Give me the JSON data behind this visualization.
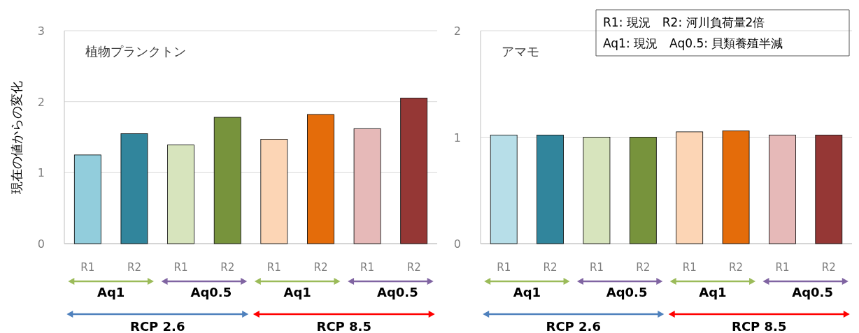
{
  "chart_data": [
    {
      "type": "bar",
      "title": "植物プランクトン",
      "ylabel": "現在の値からの変化",
      "categories": [
        "R1",
        "R2",
        "R1",
        "R2",
        "R1",
        "R2",
        "R1",
        "R2"
      ],
      "values": [
        1.25,
        1.55,
        1.39,
        1.78,
        1.47,
        1.82,
        1.62,
        2.05
      ],
      "colors": [
        "#92cddc",
        "#31859c",
        "#d7e4bd",
        "#77933c",
        "#fcd5b5",
        "#e46c0a",
        "#e6b9b8",
        "#953735"
      ],
      "ylim": [
        0,
        3
      ],
      "yticks": [
        0,
        1,
        2,
        3
      ],
      "grid": "y",
      "annotations": [
        "Aq1",
        "Aq0.5",
        "Aq1",
        "Aq0.5",
        "RCP 2.6",
        "RCP 8.5"
      ]
    },
    {
      "type": "bar",
      "title": "アマモ",
      "categories": [
        "R1",
        "R2",
        "R1",
        "R2",
        "R1",
        "R2",
        "R1",
        "R2"
      ],
      "values": [
        1.02,
        1.02,
        1.0,
        1.0,
        1.05,
        1.06,
        1.02,
        1.02
      ],
      "colors": [
        "#b7dee8",
        "#31859c",
        "#d7e4bd",
        "#77933c",
        "#fcd5b5",
        "#e46c0a",
        "#e6b9b8",
        "#953735"
      ],
      "ylim": [
        0,
        2
      ],
      "yticks": [
        0,
        1,
        2
      ],
      "grid": "y",
      "annotations": [
        "Aq1",
        "Aq0.5",
        "Aq1",
        "Aq0.5",
        "RCP 2.6",
        "RCP 8.5",
        "R1: 現況　R2: 河川負荷量2倍",
        "Aq1: 現況　Aq0.5: 貝類養殖半減"
      ]
    }
  ]
}
